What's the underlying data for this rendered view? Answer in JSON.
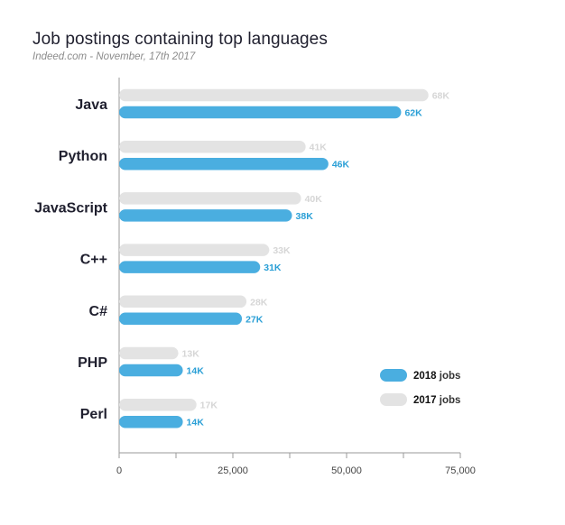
{
  "chart_data": {
    "type": "bar",
    "orientation": "horizontal",
    "title": "Job postings containing top languages",
    "subtitle": "Indeed.com - November, 17th 2017",
    "categories": [
      "Java",
      "Python",
      "JavaScript",
      "C++",
      "C#",
      "PHP",
      "Perl"
    ],
    "series": [
      {
        "name": "2017 jobs",
        "year": "2017",
        "unit": "jobs",
        "color": "#e3e3e3",
        "values": [
          68000,
          41000,
          40000,
          33000,
          28000,
          13000,
          17000
        ],
        "labels": [
          "68K",
          "41K",
          "40K",
          "33K",
          "28K",
          "13K",
          "17K"
        ]
      },
      {
        "name": "2018 jobs",
        "year": "2018",
        "unit": "jobs",
        "color": "#4aaee0",
        "values": [
          62000,
          46000,
          38000,
          31000,
          27000,
          14000,
          14000
        ],
        "labels": [
          "62K",
          "46K",
          "38K",
          "31K",
          "27K",
          "14K",
          "14K"
        ]
      }
    ],
    "xlim": [
      0,
      75000
    ],
    "xticks": [
      0,
      25000,
      50000,
      75000
    ],
    "xtick_labels": [
      "0",
      "25,000",
      "50,000",
      "75,000"
    ],
    "xlabel": "",
    "ylabel": "",
    "grid": false,
    "legend_position": "bottom-right",
    "legend": [
      {
        "year": "2018",
        "unit": "jobs",
        "color": "#4aaee0"
      },
      {
        "year": "2017",
        "unit": "jobs",
        "color": "#e3e3e3"
      }
    ]
  }
}
